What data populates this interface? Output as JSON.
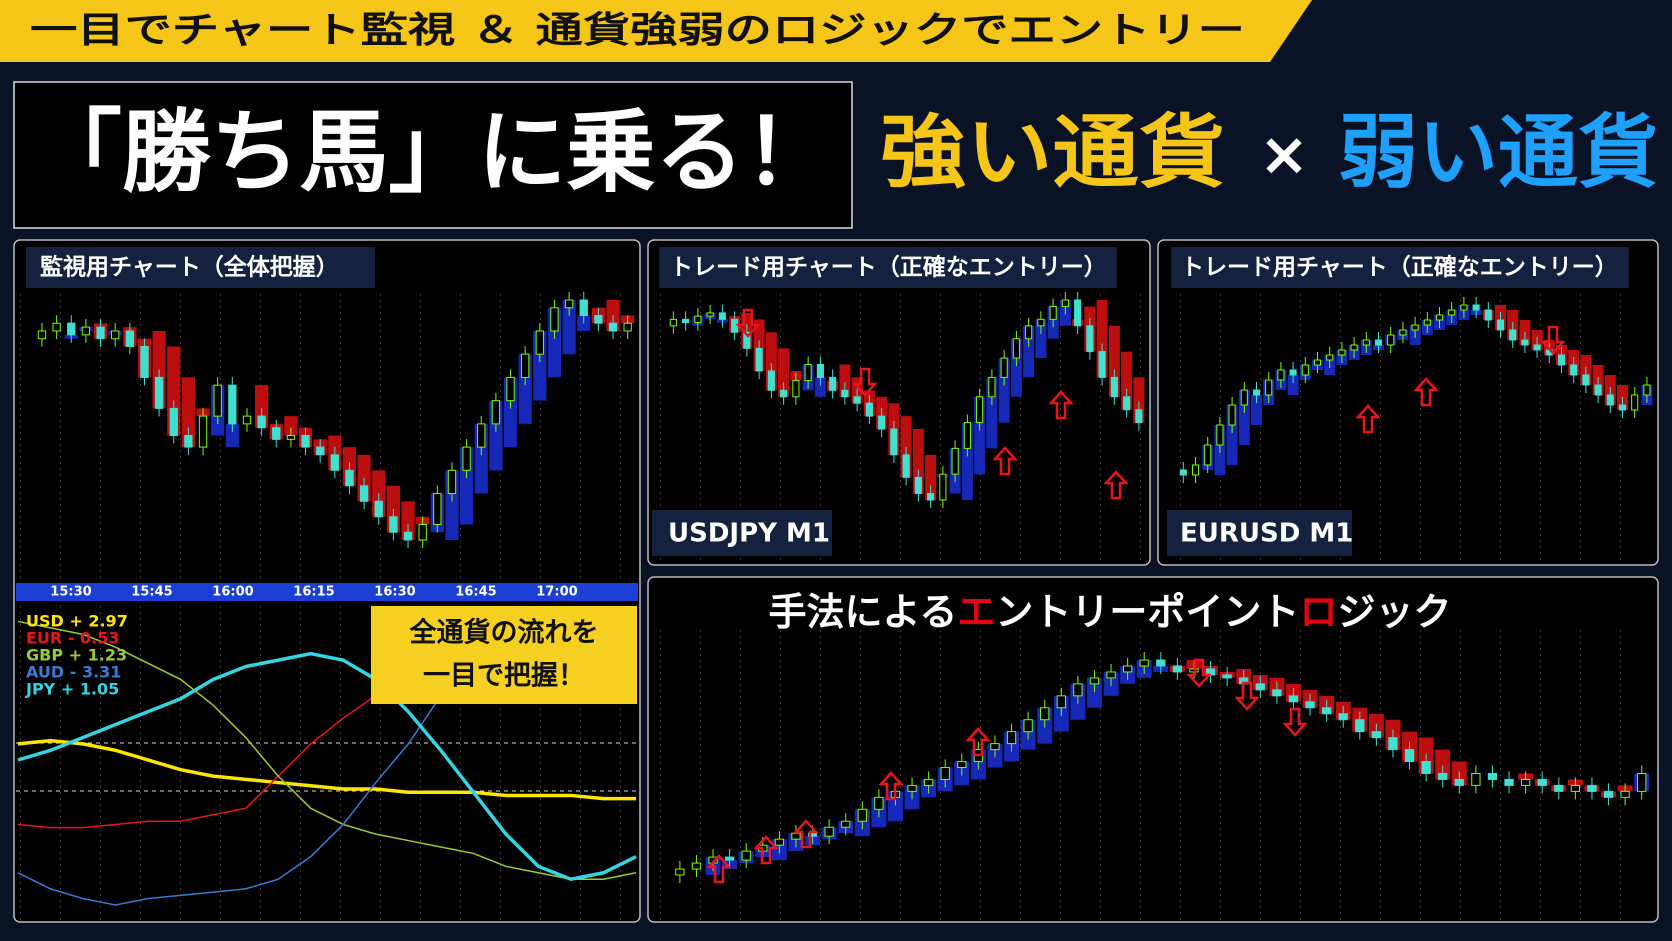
{
  "banner": {
    "title": "一目でチャート監視 ＆ 通貨強弱のロジックでエントリー"
  },
  "headline": {
    "main": "「勝ち馬」に乗る！",
    "strong": "強い通貨",
    "times": "×",
    "weak": "弱い通貨"
  },
  "panels": [
    {
      "title": "監視用チャート（全体把握）",
      "type": "candles",
      "values": [
        70,
        72,
        74,
        71,
        73,
        70,
        72,
        68,
        60,
        52,
        45,
        42,
        50,
        58,
        48,
        50,
        47,
        44,
        45,
        42,
        40,
        36,
        32,
        28,
        24,
        20,
        18,
        22,
        30,
        36,
        42,
        48,
        54,
        60,
        66,
        72,
        78,
        80,
        76,
        74,
        72,
        74
      ],
      "time_ticks": [
        "15:30",
        "15:45",
        "16:00",
        "16:15",
        "16:30",
        "16:45",
        "17:00"
      ]
    },
    {
      "title": "トレード用チャート（正確なエントリー）",
      "type": "candles",
      "label": "USDJPY M1",
      "values": [
        72,
        74,
        73,
        75,
        76,
        74,
        70,
        65,
        58,
        52,
        50,
        55,
        60,
        56,
        52,
        50,
        48,
        44,
        40,
        32,
        25,
        20,
        18,
        26,
        34,
        42,
        50,
        56,
        62,
        68,
        72,
        74,
        78,
        80,
        72,
        64,
        56,
        50,
        46,
        42
      ]
    },
    {
      "title": "トレード用チャート（正確なエントリー）",
      "type": "candles",
      "label": "EURUSD M1",
      "values": [
        20,
        18,
        22,
        30,
        38,
        46,
        52,
        50,
        56,
        60,
        58,
        62,
        64,
        66,
        68,
        70,
        72,
        70,
        74,
        76,
        78,
        80,
        82,
        84,
        86,
        84,
        80,
        76,
        72,
        70,
        68,
        66,
        62,
        58,
        54,
        50,
        46,
        44,
        50,
        54
      ]
    },
    {
      "title_parts": [
        {
          "text": "手法による",
          "highlight": false
        },
        {
          "text": "エ",
          "highlight": true
        },
        {
          "text": "ントリーポイント",
          "highlight": false
        },
        {
          "text": "ロ",
          "highlight": true
        },
        {
          "text": "ジック",
          "highlight": false
        }
      ],
      "highlight_color": "#e60012",
      "type": "candles",
      "values": [
        10,
        12,
        14,
        16,
        15,
        18,
        20,
        22,
        24,
        23,
        26,
        28,
        32,
        36,
        38,
        40,
        42,
        46,
        48,
        52,
        54,
        58,
        62,
        66,
        70,
        74,
        76,
        78,
        80,
        82,
        80,
        78,
        79,
        77,
        76,
        74,
        72,
        70,
        68,
        66,
        64,
        62,
        58,
        56,
        52,
        48,
        44,
        42,
        40,
        44,
        42,
        40,
        42,
        40,
        38,
        40,
        38,
        36,
        38,
        44
      ]
    }
  ],
  "strength": {
    "type": "line",
    "callout": [
      "全通貨の流れを",
      "一目で把握！"
    ],
    "series": [
      {
        "name": "USD + 2.97",
        "color": "#ffe600",
        "values": [
          60,
          61,
          60,
          58,
          55,
          52,
          50,
          49,
          48,
          47,
          46,
          46,
          45,
          45,
          45,
          44,
          44,
          44,
          43,
          43
        ]
      },
      {
        "name": "EUR - 0.53",
        "color": "#e8141e",
        "values": [
          35,
          34,
          34,
          35,
          36,
          36,
          38,
          40,
          50,
          60,
          68,
          75,
          80,
          85,
          90,
          92,
          94,
          95,
          96,
          96
        ]
      },
      {
        "name": "GBP + 1.23",
        "color": "#9acd32",
        "values": [
          98,
          96,
          94,
          90,
          85,
          80,
          72,
          62,
          50,
          40,
          35,
          32,
          30,
          28,
          26,
          22,
          20,
          18,
          18,
          20
        ]
      },
      {
        "name": "AUD - 3.31",
        "color": "#3a7bd5",
        "values": [
          20,
          15,
          12,
          10,
          12,
          13,
          14,
          15,
          18,
          25,
          35,
          48,
          60,
          75,
          88,
          95,
          100,
          100,
          100,
          100
        ]
      },
      {
        "name": "JPY + 1.05",
        "color": "#35d4e0",
        "values": [
          55,
          58,
          62,
          66,
          70,
          74,
          80,
          84,
          86,
          88,
          86,
          80,
          70,
          58,
          45,
          32,
          22,
          18,
          20,
          25
        ]
      }
    ]
  }
}
